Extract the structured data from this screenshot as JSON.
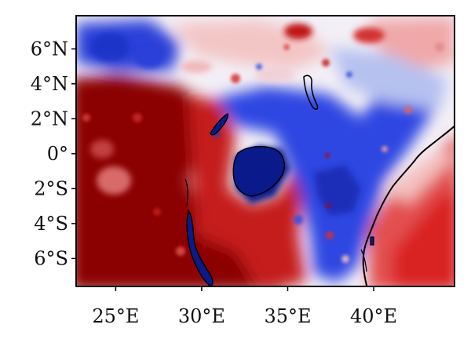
{
  "map": {
    "lon_range": [
      22.7,
      44.7
    ],
    "lat_range": [
      -7.6,
      7.9
    ],
    "x_ticks": [
      {
        "value": 25,
        "label": "25°E"
      },
      {
        "value": 30,
        "label": "30°E"
      },
      {
        "value": 35,
        "label": "35°E"
      },
      {
        "value": 40,
        "label": "40°E"
      }
    ],
    "y_ticks": [
      {
        "value": 6,
        "label": "6°N"
      },
      {
        "value": 4,
        "label": "4°N"
      },
      {
        "value": 2,
        "label": "2°N"
      },
      {
        "value": 0,
        "label": "0°"
      },
      {
        "value": -2,
        "label": "2°S"
      },
      {
        "value": -4,
        "label": "4°S"
      },
      {
        "value": -6,
        "label": "6°S"
      }
    ],
    "colors": {
      "dark_red": "#8b0000",
      "red": "#d42a2a",
      "light_red": "#f2a3a3",
      "white": "#f6f4f8",
      "light_blue": "#a9b8f0",
      "blue": "#2f47e0",
      "dark_blue": "#0a1a8a",
      "coastline": "#000000"
    }
  }
}
